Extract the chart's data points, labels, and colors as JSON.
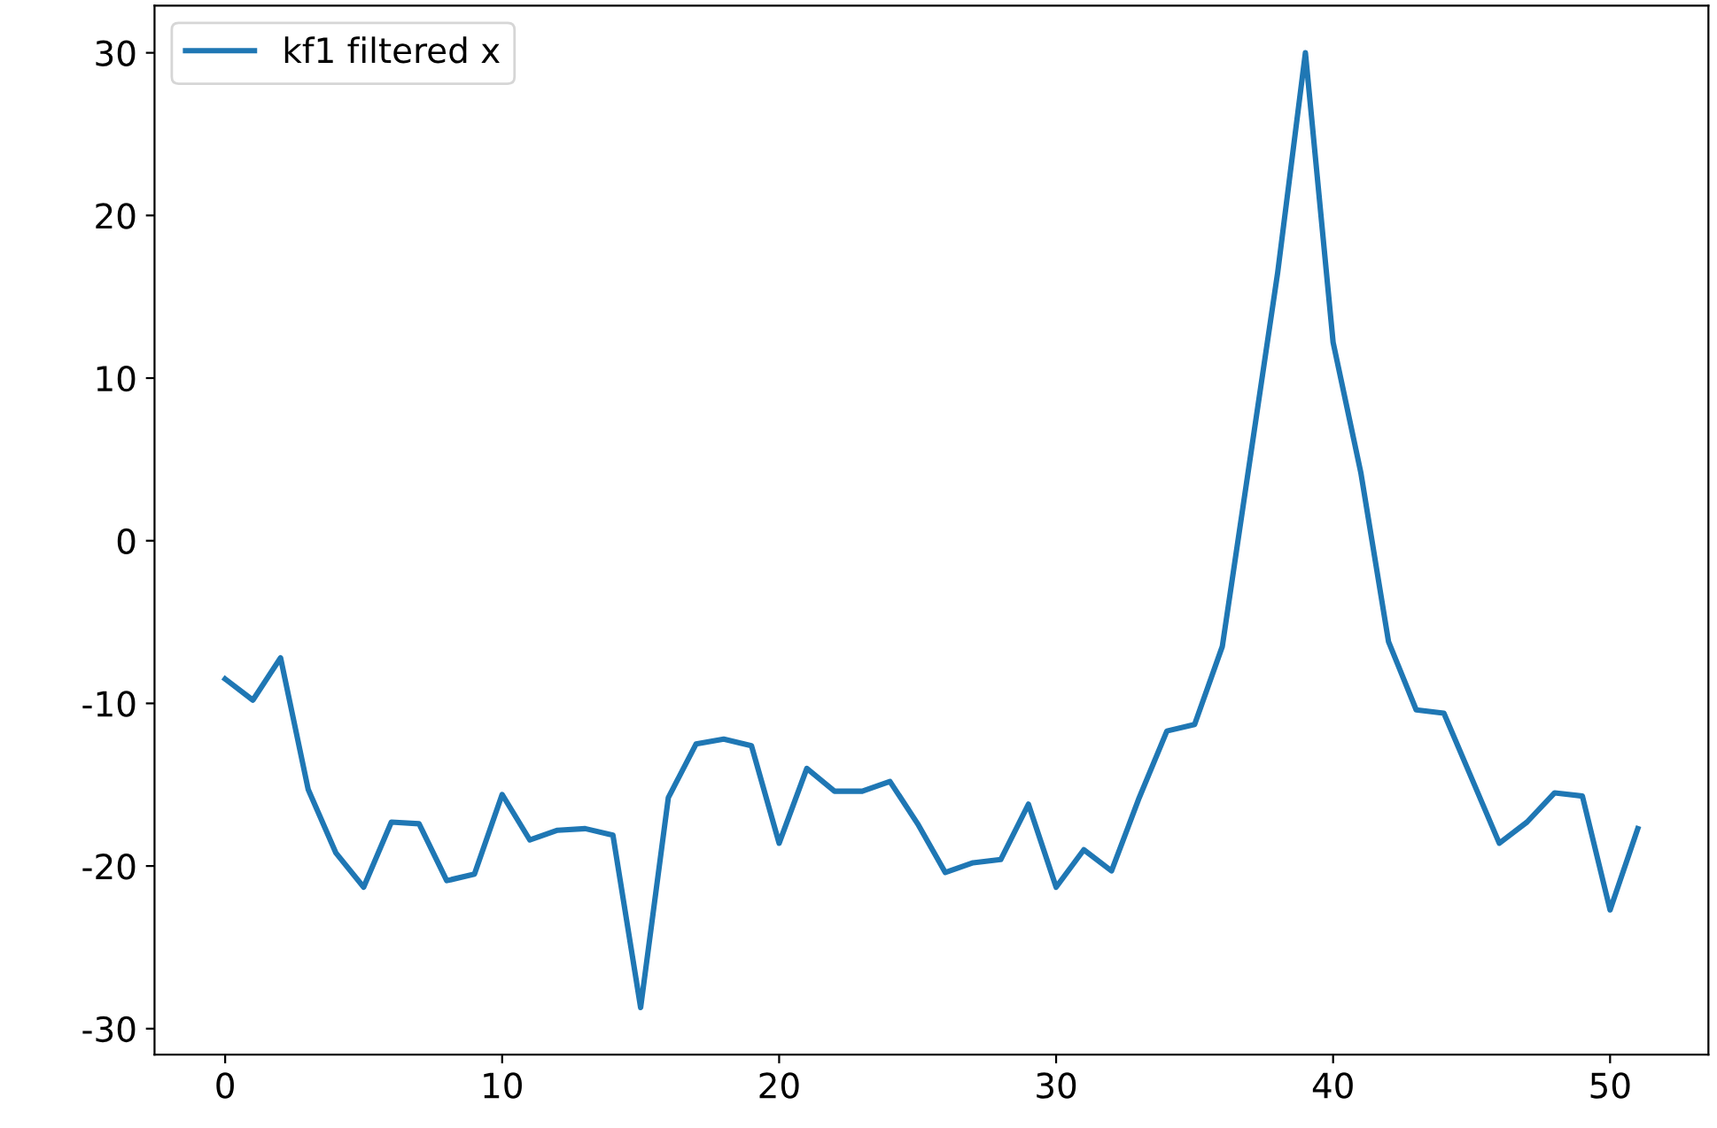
{
  "chart_data": {
    "type": "line",
    "x": [
      0,
      1,
      2,
      3,
      4,
      5,
      6,
      7,
      8,
      9,
      10,
      11,
      12,
      13,
      14,
      15,
      16,
      17,
      18,
      19,
      20,
      21,
      22,
      23,
      24,
      25,
      26,
      27,
      28,
      29,
      30,
      31,
      32,
      33,
      34,
      35,
      36,
      37,
      38,
      39,
      40,
      41,
      42,
      43,
      44,
      45,
      46,
      47,
      48,
      49,
      50,
      51
    ],
    "series": [
      {
        "name": "kf1 filtered x",
        "color": "#1f77b4",
        "values": [
          -8.5,
          -9.8,
          -7.2,
          -15.3,
          -19.2,
          -21.3,
          -17.3,
          -17.4,
          -20.9,
          -20.5,
          -15.6,
          -18.4,
          -17.8,
          -17.7,
          -18.1,
          -28.7,
          -15.8,
          -12.5,
          -12.2,
          -12.6,
          -18.6,
          -14.0,
          -15.4,
          -15.4,
          -14.8,
          -17.4,
          -20.4,
          -19.8,
          -19.6,
          -16.2,
          -21.3,
          -19.0,
          -20.3,
          -15.8,
          -11.7,
          -11.3,
          -6.5,
          5,
          16.5,
          30,
          12.2,
          4.2,
          -6.2,
          -10.4,
          -10.6,
          -14.6,
          -18.6,
          -17.3,
          -15.5,
          -15.7,
          -22.7,
          -17.7
        ]
      }
    ],
    "xlim": [
      -2.55,
      53.55
    ],
    "ylim": [
      -31.6,
      32.9
    ],
    "xticks": [
      0,
      10,
      20,
      30,
      40,
      50
    ],
    "yticks": [
      -30,
      -20,
      -10,
      0,
      10,
      20,
      30
    ],
    "legend": "top left",
    "grid": false
  }
}
